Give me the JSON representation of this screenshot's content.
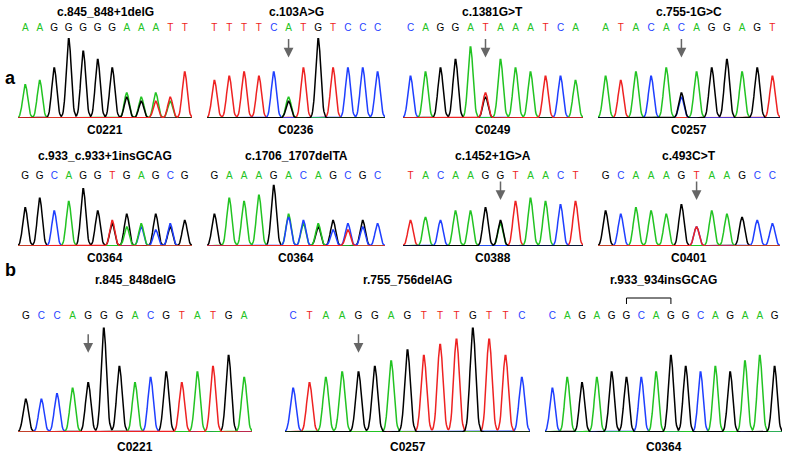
{
  "chart_data": [
    {
      "type": "line",
      "panel": "a",
      "title": "c.845_848+1delG",
      "x_label": "C0221",
      "categories": [
        "A",
        "A",
        "G",
        "G",
        "G",
        "G",
        "G",
        "A",
        "A",
        "A",
        "T",
        "T"
      ],
      "ylim": [
        0,
        100
      ],
      "yticks": [],
      "tick_labels": "x",
      "grid": false,
      "arrow_at": null,
      "series": [
        {
          "base": "A",
          "color": "#22c322",
          "values": [
            40,
            45,
            null,
            null,
            null,
            null,
            null,
            30,
            25,
            30,
            20,
            null
          ]
        },
        {
          "base": "G",
          "color": "#000000",
          "values": [
            null,
            null,
            60,
            95,
            80,
            70,
            60,
            25,
            20,
            null,
            null,
            null
          ]
        },
        {
          "base": "T",
          "color": "#ee2222",
          "values": [
            null,
            null,
            null,
            null,
            null,
            null,
            null,
            null,
            null,
            20,
            25,
            55
          ]
        }
      ]
    },
    {
      "type": "line",
      "panel": "a",
      "title": "c.103A>G",
      "x_label": "C0236",
      "categories": [
        "T",
        "T",
        "T",
        "T",
        "C",
        "A",
        "T",
        "G",
        "T",
        "C",
        "C",
        "C"
      ],
      "ylim": [
        0,
        100
      ],
      "yticks": [],
      "tick_labels": "x",
      "grid": false,
      "arrow_at": 5,
      "series": [
        {
          "base": "T",
          "color": "#ee2222",
          "values": [
            45,
            50,
            55,
            50,
            null,
            null,
            60,
            null,
            60,
            null,
            null,
            null
          ]
        },
        {
          "base": "C",
          "color": "#1f3fff",
          "values": [
            null,
            null,
            null,
            null,
            55,
            null,
            null,
            null,
            null,
            60,
            60,
            55
          ]
        },
        {
          "base": "A",
          "color": "#22c322",
          "values": [
            null,
            null,
            null,
            null,
            null,
            25,
            null,
            null,
            null,
            null,
            null,
            null
          ]
        },
        {
          "base": "G",
          "color": "#000000",
          "values": [
            null,
            null,
            null,
            null,
            null,
            20,
            null,
            95,
            null,
            null,
            null,
            null
          ]
        }
      ]
    },
    {
      "type": "line",
      "panel": "a",
      "title": "c.1381G>T",
      "x_label": "C0249",
      "categories": [
        "C",
        "A",
        "G",
        "G",
        "A",
        "T",
        "A",
        "A",
        "A",
        "T",
        "C",
        "A"
      ],
      "ylim": [
        0,
        100
      ],
      "yticks": [],
      "tick_labels": "x",
      "grid": false,
      "arrow_at": 5,
      "series": [
        {
          "base": "C",
          "color": "#1f3fff",
          "values": [
            50,
            null,
            null,
            null,
            null,
            null,
            null,
            null,
            null,
            null,
            50,
            null
          ]
        },
        {
          "base": "A",
          "color": "#22c322",
          "values": [
            null,
            55,
            null,
            null,
            85,
            null,
            70,
            60,
            55,
            null,
            null,
            45
          ]
        },
        {
          "base": "G",
          "color": "#000000",
          "values": [
            null,
            null,
            60,
            70,
            null,
            25,
            null,
            null,
            null,
            null,
            null,
            null
          ]
        },
        {
          "base": "T",
          "color": "#ee2222",
          "values": [
            null,
            null,
            null,
            null,
            null,
            30,
            null,
            null,
            null,
            50,
            null,
            null
          ]
        }
      ]
    },
    {
      "type": "line",
      "panel": "a",
      "title": "c.755-1G>C",
      "x_label": "C0257",
      "categories": [
        "A",
        "T",
        "A",
        "C",
        "A",
        "C",
        "A",
        "G",
        "G",
        "A",
        "G",
        "T"
      ],
      "ylim": [
        0,
        100
      ],
      "yticks": [],
      "tick_labels": "x",
      "grid": false,
      "arrow_at": 5,
      "series": [
        {
          "base": "A",
          "color": "#22c322",
          "values": [
            50,
            null,
            55,
            null,
            60,
            null,
            55,
            null,
            null,
            55,
            null,
            null
          ]
        },
        {
          "base": "T",
          "color": "#ee2222",
          "values": [
            null,
            45,
            null,
            null,
            null,
            null,
            null,
            null,
            null,
            null,
            null,
            50
          ]
        },
        {
          "base": "C",
          "color": "#1f3fff",
          "values": [
            null,
            null,
            null,
            50,
            null,
            25,
            null,
            null,
            null,
            null,
            null,
            null
          ]
        },
        {
          "base": "G",
          "color": "#000000",
          "values": [
            null,
            null,
            null,
            null,
            null,
            30,
            null,
            60,
            70,
            null,
            60,
            null
          ]
        }
      ]
    },
    {
      "type": "line",
      "panel": "a",
      "title": "c.933_c.933+1insGCAG",
      "x_label": "C0364",
      "categories": [
        "G",
        "G",
        "C",
        "A",
        "G",
        "G",
        "T",
        "G",
        "A",
        "G",
        "C",
        "G"
      ],
      "ylim": [
        0,
        100
      ],
      "yticks": [],
      "tick_labels": "x",
      "grid": false,
      "arrow_at": null,
      "series": [
        {
          "base": "G",
          "color": "#000000",
          "values": [
            60,
            75,
            null,
            null,
            90,
            55,
            35,
            50,
            null,
            50,
            30,
            40
          ]
        },
        {
          "base": "C",
          "color": "#1f3fff",
          "values": [
            null,
            null,
            55,
            null,
            null,
            null,
            null,
            null,
            30,
            25,
            35,
            null
          ]
        },
        {
          "base": "A",
          "color": "#22c322",
          "values": [
            null,
            null,
            null,
            70,
            null,
            null,
            null,
            30,
            35,
            null,
            null,
            null
          ]
        },
        {
          "base": "T",
          "color": "#ee2222",
          "values": [
            null,
            null,
            null,
            null,
            null,
            null,
            40,
            null,
            null,
            null,
            null,
            null
          ]
        }
      ]
    },
    {
      "type": "line",
      "panel": "a",
      "title": "c.1706_1707delTA",
      "x_label": "C0364",
      "categories": [
        "G",
        "A",
        "A",
        "A",
        "G",
        "A",
        "C",
        "A",
        "G",
        "C",
        "G",
        "C"
      ],
      "ylim": [
        0,
        100
      ],
      "yticks": [],
      "tick_labels": "x",
      "grid": false,
      "arrow_at": null,
      "series": [
        {
          "base": "G",
          "color": "#000000",
          "values": [
            50,
            null,
            null,
            null,
            95,
            null,
            null,
            30,
            40,
            null,
            40,
            null
          ]
        },
        {
          "base": "A",
          "color": "#22c322",
          "values": [
            null,
            75,
            70,
            80,
            null,
            50,
            35,
            35,
            null,
            null,
            null,
            null
          ]
        },
        {
          "base": "C",
          "color": "#1f3fff",
          "values": [
            null,
            null,
            null,
            null,
            null,
            45,
            40,
            null,
            25,
            35,
            30,
            35
          ]
        },
        {
          "base": "T",
          "color": "#ee2222",
          "values": [
            null,
            null,
            null,
            null,
            null,
            null,
            null,
            null,
            null,
            25,
            null,
            null
          ]
        }
      ]
    },
    {
      "type": "line",
      "panel": "a",
      "title": "c.1452+1G>A",
      "x_label": "C0388",
      "categories": [
        "T",
        "A",
        "C",
        "A",
        "A",
        "G",
        "G",
        "T",
        "A",
        "A",
        "C",
        "T"
      ],
      "ylim": [
        0,
        100
      ],
      "yticks": [],
      "tick_labels": "x",
      "grid": false,
      "arrow_at": 6,
      "series": [
        {
          "base": "T",
          "color": "#ee2222",
          "values": [
            40,
            null,
            null,
            null,
            null,
            null,
            null,
            70,
            null,
            null,
            null,
            70
          ]
        },
        {
          "base": "A",
          "color": "#22c322",
          "values": [
            null,
            45,
            null,
            55,
            55,
            null,
            35,
            null,
            75,
            70,
            null,
            null
          ]
        },
        {
          "base": "C",
          "color": "#1f3fff",
          "values": [
            null,
            null,
            40,
            null,
            null,
            null,
            null,
            null,
            null,
            null,
            65,
            null
          ]
        },
        {
          "base": "G",
          "color": "#000000",
          "values": [
            null,
            null,
            null,
            null,
            null,
            60,
            40,
            null,
            null,
            null,
            null,
            null
          ]
        }
      ]
    },
    {
      "type": "line",
      "panel": "a",
      "title": "c.493C>T",
      "x_label": "C0401",
      "categories": [
        "G",
        "C",
        "A",
        "A",
        "A",
        "G",
        "T",
        "A",
        "A",
        "G",
        "C",
        "C"
      ],
      "ylim": [
        0,
        100
      ],
      "yticks": [],
      "tick_labels": "x",
      "grid": false,
      "arrow_at": 6,
      "series": [
        {
          "base": "G",
          "color": "#000000",
          "values": [
            55,
            null,
            null,
            null,
            null,
            65,
            null,
            null,
            null,
            45,
            null,
            null
          ]
        },
        {
          "base": "C",
          "color": "#1f3fff",
          "values": [
            null,
            50,
            null,
            null,
            null,
            null,
            30,
            null,
            null,
            null,
            40,
            35
          ]
        },
        {
          "base": "A",
          "color": "#22c322",
          "values": [
            null,
            null,
            60,
            55,
            50,
            null,
            null,
            55,
            50,
            null,
            null,
            null
          ]
        },
        {
          "base": "T",
          "color": "#ee2222",
          "values": [
            null,
            null,
            null,
            null,
            null,
            null,
            30,
            null,
            null,
            null,
            null,
            null
          ]
        }
      ]
    },
    {
      "type": "line",
      "panel": "b",
      "title": "r.845_848delG",
      "x_label": "C0221",
      "categories": [
        "G",
        "C",
        "C",
        "A",
        "G",
        "G",
        "G",
        "A",
        "C",
        "G",
        "T",
        "A",
        "T",
        "G",
        "A"
      ],
      "ylim": [
        0,
        100
      ],
      "yticks": [],
      "tick_labels": "x",
      "grid": false,
      "arrow_at": 4,
      "series": [
        {
          "base": "G",
          "color": "#000000",
          "values": [
            30,
            null,
            null,
            null,
            45,
            95,
            60,
            null,
            null,
            55,
            null,
            null,
            null,
            70,
            null
          ]
        },
        {
          "base": "C",
          "color": "#1f3fff",
          "values": [
            null,
            30,
            35,
            null,
            null,
            null,
            null,
            null,
            50,
            null,
            null,
            null,
            null,
            null,
            null
          ]
        },
        {
          "base": "A",
          "color": "#22c322",
          "values": [
            null,
            null,
            null,
            40,
            null,
            null,
            null,
            45,
            null,
            null,
            null,
            55,
            null,
            null,
            50
          ]
        },
        {
          "base": "T",
          "color": "#ee2222",
          "values": [
            null,
            null,
            null,
            null,
            null,
            null,
            null,
            null,
            null,
            null,
            45,
            null,
            60,
            null,
            null
          ]
        }
      ]
    },
    {
      "type": "line",
      "panel": "b",
      "title": "r.755_756delAG",
      "x_label": "C0257",
      "categories": [
        "C",
        "T",
        "A",
        "A",
        "G",
        "G",
        "A",
        "G",
        "T",
        "T",
        "T",
        "G",
        "T",
        "T",
        "C"
      ],
      "ylim": [
        0,
        100
      ],
      "yticks": [],
      "tick_labels": "x",
      "grid": false,
      "arrow_at": 4,
      "series": [
        {
          "base": "C",
          "color": "#1f3fff",
          "values": [
            40,
            null,
            null,
            null,
            null,
            null,
            null,
            null,
            null,
            null,
            null,
            null,
            null,
            null,
            50
          ]
        },
        {
          "base": "T",
          "color": "#ee2222",
          "values": [
            null,
            45,
            null,
            null,
            null,
            null,
            null,
            null,
            70,
            80,
            85,
            null,
            85,
            70,
            null
          ]
        },
        {
          "base": "A",
          "color": "#22c322",
          "values": [
            null,
            null,
            50,
            55,
            null,
            null,
            65,
            null,
            null,
            null,
            null,
            null,
            null,
            null,
            null
          ]
        },
        {
          "base": "G",
          "color": "#000000",
          "values": [
            null,
            null,
            null,
            null,
            55,
            60,
            null,
            75,
            null,
            null,
            null,
            95,
            null,
            null,
            null
          ]
        }
      ]
    },
    {
      "type": "line",
      "panel": "b",
      "title": "r.933_934insGCAG",
      "x_label": "C0364",
      "categories": [
        "C",
        "A",
        "G",
        "A",
        "G",
        "G",
        "C",
        "A",
        "G",
        "G",
        "C",
        "A",
        "G",
        "A",
        "A",
        "G"
      ],
      "ylim": [
        0,
        100
      ],
      "yticks": [],
      "tick_labels": "x",
      "grid": false,
      "arrow_at": null,
      "bracket": [
        5,
        8
      ],
      "series": [
        {
          "base": "C",
          "color": "#1f3fff",
          "values": [
            40,
            null,
            null,
            null,
            null,
            null,
            50,
            null,
            null,
            null,
            55,
            null,
            null,
            null,
            null,
            null
          ]
        },
        {
          "base": "A",
          "color": "#22c322",
          "values": [
            null,
            50,
            null,
            50,
            null,
            null,
            null,
            55,
            null,
            null,
            null,
            60,
            null,
            65,
            70,
            null
          ]
        },
        {
          "base": "G",
          "color": "#000000",
          "values": [
            null,
            null,
            45,
            null,
            55,
            50,
            null,
            null,
            70,
            60,
            null,
            null,
            55,
            null,
            null,
            60
          ]
        }
      ]
    }
  ]
}
